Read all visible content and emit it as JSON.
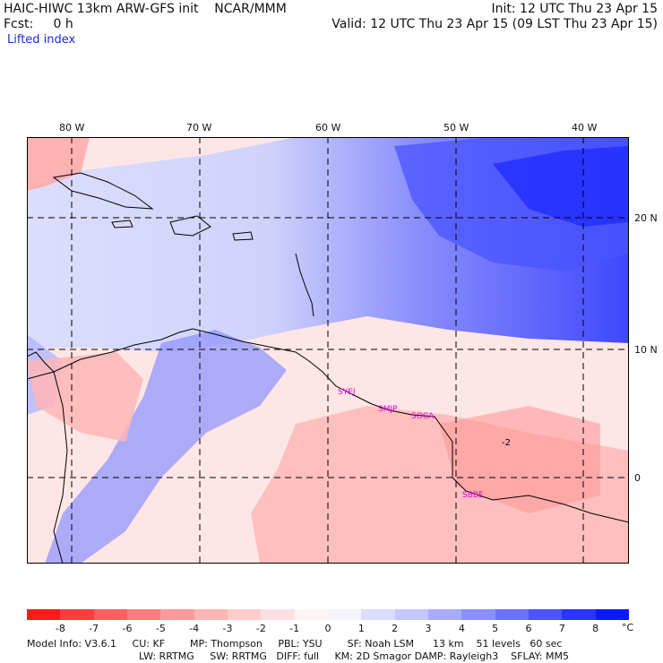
{
  "header": {
    "title_left": "HAIC-HIWC 13km ARW-GFS init    NCAR/MMM",
    "fcst": "Fcst:     0 h",
    "init": "Init: 12 UTC Thu 23 Apr 15",
    "valid": "Valid: 12 UTC Thu 23 Apr 15 (09 LST Thu 23 Apr 15)"
  },
  "field_name": "Lifted index",
  "longitude_labels": [
    "80 W",
    "70 W",
    "60 W",
    "50 W",
    "40 W"
  ],
  "latitude_labels": [
    "20 N",
    "10 N",
    "0"
  ],
  "station_labels": [
    "SYEJ",
    "SMJP",
    "SOCA",
    "SBBE"
  ],
  "contour_labels": [
    "-2"
  ],
  "colorbar": {
    "labels": [
      "-8",
      "-7",
      "-6",
      "-5",
      "-4",
      "-3",
      "-2",
      "-1",
      "0",
      "1",
      "2",
      "3",
      "4",
      "5",
      "6",
      "7",
      "8"
    ],
    "unit": "°C",
    "colors": [
      "#ff1a1a",
      "#ff3d3d",
      "#ff5e5e",
      "#ff7c7c",
      "#ff9a9a",
      "#ffb5b5",
      "#ffcccc",
      "#ffe0e0",
      "#fff4f4",
      "#f4f4ff",
      "#dcdcff",
      "#c4c6ff",
      "#a8acff",
      "#8a90ff",
      "#6a72ff",
      "#4a54ff",
      "#2a36ff",
      "#0a18ff"
    ]
  },
  "model_info": {
    "line1": "Model Info: V3.6.1     CU: KF        MP: Thompson     PBL: YSU        SF: Noah LSM      13 km    51 levels   60 sec",
    "line2": "LW: RRTMG     SW: RRTMG   DIFF: full     KM: 2D Smagor DAMP: Rayleigh3    SFLAY: MM5"
  }
}
